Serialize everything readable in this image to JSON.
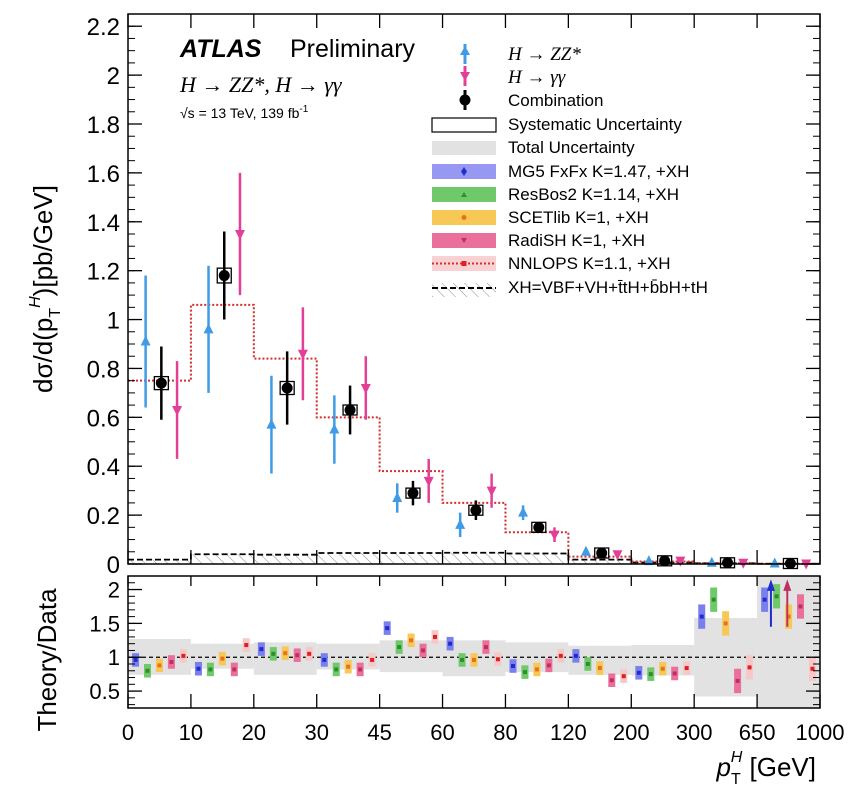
{
  "chart_data": {
    "type": "scatter",
    "title": "ATLAS",
    "subtitle": "Preliminary",
    "process_label": "H → ZZ*, H → γγ",
    "energy_label": "√s = 13 TeV, 139 fb",
    "energy_sup": "-1",
    "ylabel": "dσ/d(p",
    "ylabel_sub": "T",
    "ylabel_sup": "H",
    "ylabel_tail": ")[pb/GeV]",
    "ratio_ylabel": "Theory/Data",
    "xlabel": "p",
    "xlabel_sub": "T",
    "xlabel_sup": "H",
    "xlabel_tail": " [GeV]",
    "bin_edges": [
      "0",
      "10",
      "20",
      "30",
      "45",
      "60",
      "80",
      "120",
      "200",
      "300",
      "650",
      "1000"
    ],
    "ylim": [
      0,
      2.25
    ],
    "yticks": [
      "0",
      "0.2",
      "0.4",
      "0.6",
      "0.8",
      "1",
      "1.2",
      "1.4",
      "1.6",
      "1.8",
      "2",
      "2.2"
    ],
    "ratio_ylim": [
      0.25,
      2.2
    ],
    "ratio_yticks": [
      "0.5",
      "1",
      "1.5",
      "2"
    ],
    "series": [
      {
        "name": "H → ZZ*",
        "color": "#3f9be6",
        "values": [
          0.91,
          0.96,
          0.57,
          0.55,
          0.27,
          0.16,
          0.21,
          0.05,
          0.012,
          0.005,
          0.002
        ],
        "err": [
          0.27,
          0.26,
          0.2,
          0.14,
          0.06,
          0.05,
          0.03,
          0.012,
          0.006,
          0.003,
          0.001
        ]
      },
      {
        "name": "H → γγ",
        "color": "#e33f97",
        "values": [
          0.63,
          1.35,
          0.86,
          0.72,
          0.34,
          0.3,
          0.12,
          0.04,
          0.014,
          0.005,
          0.002
        ],
        "err": [
          0.2,
          0.25,
          0.19,
          0.13,
          0.09,
          0.07,
          0.03,
          0.012,
          0.006,
          0.003,
          0.001
        ]
      },
      {
        "name": "Combination",
        "color": "#000000",
        "values": [
          0.74,
          1.18,
          0.72,
          0.63,
          0.29,
          0.22,
          0.15,
          0.045,
          0.013,
          0.005,
          0.002
        ],
        "err": [
          0.15,
          0.18,
          0.15,
          0.1,
          0.05,
          0.04,
          0.02,
          0.01,
          0.004,
          0.002,
          0.001
        ]
      }
    ],
    "nnlops_values": [
      0.75,
      1.06,
      0.84,
      0.6,
      0.38,
      0.25,
      0.13,
      0.03,
      0.01,
      0.003,
      0.001
    ],
    "xh_values": [
      0.018,
      0.04,
      0.038,
      0.045,
      0.045,
      0.046,
      0.043,
      0.018,
      0.006,
      0.003,
      0.001
    ],
    "ratio_total_unc": [
      [
        0.74,
        1.27
      ],
      [
        0.83,
        1.2
      ],
      [
        0.74,
        1.22
      ],
      [
        0.82,
        1.2
      ],
      [
        0.78,
        1.25
      ],
      [
        0.72,
        1.25
      ],
      [
        0.78,
        1.22
      ],
      [
        0.74,
        1.17
      ],
      [
        0.73,
        1.18
      ],
      [
        0.42,
        1.58
      ],
      [
        0.25,
        2.2
      ]
    ],
    "ratio_models": [
      {
        "name": "MG5 FxFx",
        "color": "#7a7fee",
        "marker_color": "#1f2ccf",
        "values": [
          0.96,
          0.83,
          1.12,
          0.96,
          1.43,
          1.2,
          0.87,
          1.02,
          0.77,
          1.6,
          1.85
        ]
      },
      {
        "name": "ResBos2",
        "color": "#6fc96a",
        "marker_color": "#2b8f2c",
        "values": [
          0.8,
          0.82,
          1.05,
          0.82,
          1.15,
          0.96,
          0.78,
          0.9,
          0.75,
          1.85,
          1.9
        ]
      },
      {
        "name": "SCETlib",
        "color": "#f7c856",
        "marker_color": "#e8711d",
        "values": [
          0.88,
          0.98,
          1.06,
          0.86,
          1.25,
          0.96,
          0.82,
          0.84,
          0.83,
          1.5,
          1.6
        ]
      },
      {
        "name": "RadiSH",
        "color": "#ea6f9a",
        "marker_color": "#c0305c",
        "values": [
          0.93,
          0.82,
          1.03,
          0.82,
          1.1,
          1.15,
          0.88,
          0.66,
          0.76,
          0.65,
          1.75
        ]
      },
      {
        "name": "NNLOPS",
        "color": "#f6c8c8",
        "marker_color": "#e02020",
        "values": [
          1.02,
          1.18,
          1.05,
          0.96,
          1.3,
          0.97,
          1.02,
          0.72,
          0.84,
          0.85,
          0.83
        ]
      }
    ],
    "legend": [
      {
        "label": "H → ZZ*"
      },
      {
        "label": "H → γγ"
      },
      {
        "label": "Combination"
      },
      {
        "label": "Systematic Uncertainty"
      },
      {
        "label": "Total Uncertainty"
      },
      {
        "label": "MG5 FxFx K=1.47, +XH"
      },
      {
        "label": "ResBos2 K=1.14, +XH"
      },
      {
        "label": "SCETlib K=1, +XH"
      },
      {
        "label": "RadiSH K=1, +XH"
      },
      {
        "label": "NNLOPS K=1.1, +XH"
      },
      {
        "label": "XH=VBF+VH+t̄tH+b̄bH+tH"
      }
    ],
    "colors": {
      "zz": "#3f9be6",
      "yy": "#e33f97",
      "comb": "#000000",
      "band": "#e2e2e2",
      "nnlops": "#d0302e"
    }
  }
}
